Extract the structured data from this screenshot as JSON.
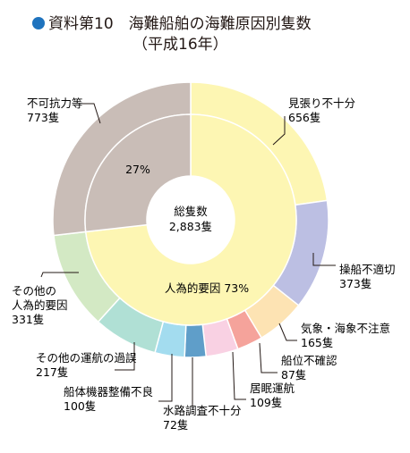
{
  "header": {
    "title_main": "資料第10　海難船舶の海難原因別隻数",
    "title_sub": "（平成16年）"
  },
  "chart_data": {
    "type": "pie",
    "title": "資料第10　海難船舶の海難原因別隻数",
    "subtitle": "（平成16年）",
    "center": {
      "label": "総隻数",
      "value": "2,883隻",
      "total": 2883
    },
    "inner_ring": [
      {
        "label": "人為的要因 73%",
        "value": 2110,
        "color": "#fdf6b3"
      },
      {
        "label": "27%",
        "value": 773,
        "color": "#c9bdb7"
      }
    ],
    "outer_ring": [
      {
        "name": "見張り不十分",
        "value": 656,
        "value_label": "656隻",
        "color": "#fdf6b3"
      },
      {
        "name": "操船不適切",
        "value": 373,
        "value_label": "373隻",
        "color": "#bcbfe3"
      },
      {
        "name": "気象・海象不注意",
        "value": 165,
        "value_label": "165隻",
        "color": "#fde3b3"
      },
      {
        "name": "船位不確認",
        "value": 87,
        "value_label": "87隻",
        "color": "#f5a39b"
      },
      {
        "name": "居眠運航",
        "value": 109,
        "value_label": "109隻",
        "color": "#f9d1e3"
      },
      {
        "name": "水路調査不十分",
        "value": 72,
        "value_label": "72隻",
        "color": "#5f9ec9"
      },
      {
        "name": "船体機器整備不良",
        "value": 100,
        "value_label": "100隻",
        "color": "#a3dcef"
      },
      {
        "name": "その他の運航の過誤",
        "value": 217,
        "value_label": "217隻",
        "color": "#b0e0d5"
      },
      {
        "name": "その他の人為的要因",
        "value": 331,
        "value_label": "331隻",
        "color": "#d3e9c4"
      },
      {
        "name": "不可抗力等",
        "value": 773,
        "value_label": "773隻",
        "color": "#c9bdb7"
      }
    ]
  }
}
